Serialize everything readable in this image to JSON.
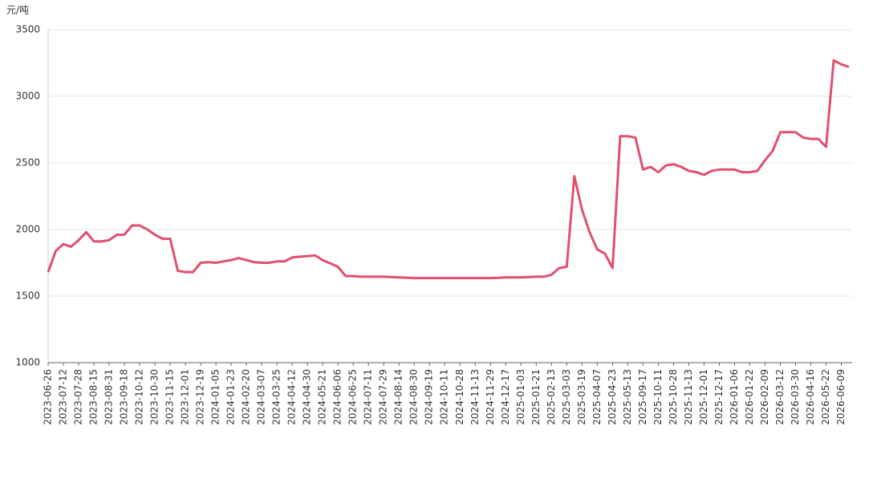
{
  "chart_data": {
    "type": "line",
    "y_label": "元/吨",
    "categories": [
      "2023-06-26",
      null,
      "2023-07-12",
      null,
      "2023-07-28",
      null,
      "2023-08-15",
      null,
      "2023-08-31",
      null,
      "2023-09-18",
      null,
      "2023-10-12",
      null,
      "2023-10-30",
      null,
      "2023-11-15",
      null,
      "2023-12-01",
      null,
      "2023-12-19",
      null,
      "2024-01-05",
      null,
      "2024-01-23",
      null,
      "2024-02-20",
      null,
      "2024-03-07",
      null,
      "2024-03-25",
      null,
      "2024-04-12",
      null,
      "2024-04-30",
      null,
      "2024-05-21",
      null,
      "2024-06-06",
      null,
      "2024-06-25",
      null,
      "2024-07-11",
      null,
      "2024-07-29",
      null,
      "2024-08-14",
      null,
      "2024-08-30",
      null,
      "2024-09-19",
      null,
      "2024-10-11",
      null,
      "2024-10-28",
      null,
      "2024-11-13",
      null,
      "2024-11-29",
      null,
      "2024-12-17",
      null,
      "2025-01-03",
      null,
      "2025-01-21",
      null,
      "2025-02-13",
      null,
      "2025-03-03",
      null,
      "2025-03-19",
      null,
      "2025-04-07",
      null,
      "2025-04-23",
      null,
      "2025-05-13",
      null,
      "2025-09-17",
      null,
      "2025-10-11",
      null,
      "2025-10-28",
      null,
      "2025-11-13",
      null,
      "2025-12-01",
      null,
      "2025-12-17",
      null,
      "2026-01-06",
      null,
      "2026-01-22",
      null,
      "2026-02-09",
      null,
      "2026-03-12",
      null,
      "2026-03-30",
      null,
      "2026-04-16",
      null,
      "2026-05-22",
      null,
      "2026-06-09",
      null
    ],
    "values": [
      1680,
      1840,
      1890,
      1870,
      1920,
      1980,
      1910,
      1910,
      1920,
      1960,
      1960,
      2030,
      2030,
      2000,
      1960,
      1930,
      1930,
      1690,
      1680,
      1680,
      1750,
      1755,
      1750,
      1760,
      1770,
      1785,
      1770,
      1755,
      1750,
      1750,
      1760,
      1760,
      1790,
      1795,
      1800,
      1805,
      1770,
      1745,
      1720,
      1650,
      1650,
      1645,
      1645,
      1645,
      1645,
      1642,
      1640,
      1638,
      1635,
      1635,
      1635,
      1635,
      1635,
      1635,
      1635,
      1635,
      1635,
      1635,
      1635,
      1637,
      1640,
      1640,
      1640,
      1642,
      1645,
      1645,
      1660,
      1710,
      1720,
      2400,
      2150,
      1980,
      1850,
      1820,
      1710,
      2700,
      2700,
      2690,
      2450,
      2470,
      2430,
      2480,
      2490,
      2470,
      2440,
      2430,
      2410,
      2440,
      2450,
      2450,
      2450,
      2430,
      2430,
      2440,
      2520,
      2590,
      2730,
      2730,
      2730,
      2690,
      2680,
      2680,
      2620,
      3270,
      3240,
      3220
    ],
    "color": "#e0506f",
    "ylim": [
      1000,
      3500
    ],
    "yticks": [
      1000,
      1500,
      2000,
      2500,
      3000,
      3500
    ],
    "grid": true
  }
}
